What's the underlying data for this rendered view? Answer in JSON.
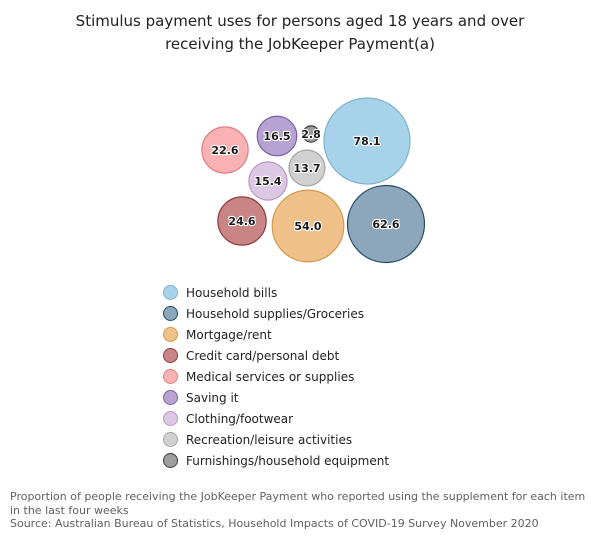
{
  "chart_data": {
    "type": "bubble",
    "title_line1": "Stimulus payment uses for persons aged 18 years and over",
    "title_line2": "receiving the JobKeeper Payment(a)",
    "unit": "%",
    "series": [
      {
        "name": "Household bills",
        "value": 78.1,
        "fill": "#a6d3ea",
        "stroke": "#7fb2cf"
      },
      {
        "name": "Household supplies/Groceries",
        "value": 62.6,
        "fill": "#8ca6bb",
        "stroke": "#244a66"
      },
      {
        "name": "Mortgage/rent",
        "value": 54.0,
        "fill": "#f0c08a",
        "stroke": "#d49a4c"
      },
      {
        "name": "Credit card/personal debt",
        "value": 24.6,
        "fill": "#c98585",
        "stroke": "#8f3b3b"
      },
      {
        "name": "Medical services or supplies",
        "value": 22.6,
        "fill": "#f8b2b4",
        "stroke": "#e07d82"
      },
      {
        "name": "Saving it",
        "value": 16.5,
        "fill": "#b7a3d1",
        "stroke": "#7a5fa3"
      },
      {
        "name": "Clothing/footwear",
        "value": 15.4,
        "fill": "#dcc8e4",
        "stroke": "#b797c6"
      },
      {
        "name": "Recreation/leisure activities",
        "value": 13.7,
        "fill": "#d0d0d0",
        "stroke": "#a5a5a5"
      },
      {
        "name": "Furnishings/household equipment",
        "value": 2.8,
        "fill": "#9d9d9d",
        "stroke": "#3e3e3e"
      }
    ],
    "value_labels": [
      "78.1",
      "62.6",
      "54.0",
      "24.6",
      "22.6",
      "16.5",
      "15.4",
      "13.7",
      "2.8"
    ],
    "legend_position": "bottom-left"
  },
  "footnote": {
    "line1": "Proportion of people receiving the JobKeeper Payment who reported using the supplement for each item in the last four weeks",
    "line2": "Source: Australian Bureau of Statistics, Household Impacts of COVID-19 Survey November 2020"
  }
}
